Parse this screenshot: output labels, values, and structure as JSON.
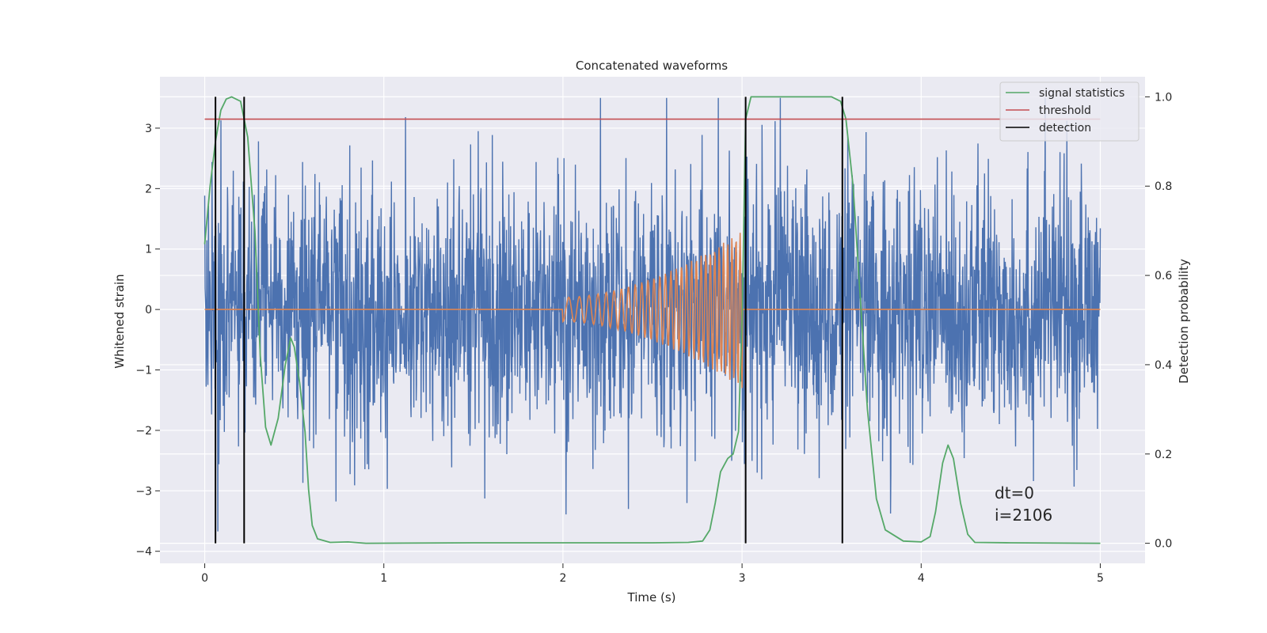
{
  "chart_data": {
    "type": "line",
    "title": "Concatenated waveforms",
    "xlabel": "Time (s)",
    "ylabel": "Whitened strain",
    "y2label": "Detection probability",
    "xlim": [
      -0.25,
      5.25
    ],
    "ylim": [
      -4.2,
      3.85
    ],
    "y2lim": [
      -0.045,
      1.045
    ],
    "xticks": [
      "0",
      "1",
      "2",
      "3",
      "4",
      "5"
    ],
    "yticks": [
      "3",
      "2",
      "1",
      "0",
      "−1",
      "−2",
      "−3",
      "−4"
    ],
    "y2ticks": [
      "1.0",
      "0.8",
      "0.6",
      "0.4",
      "0.2",
      "0.0"
    ],
    "grid": true,
    "legend_position": "top-right",
    "colors": {
      "strain": "#4c72b0",
      "template": "#dd8452",
      "signal_statistics": "#55a868",
      "threshold": "#c44e52",
      "detection": "#000000",
      "background": "#eaeaf2",
      "grid": "#ffffff"
    },
    "series": [
      {
        "name": "signal statistics",
        "axis": "right",
        "x": [
          0.0,
          0.03,
          0.06,
          0.09,
          0.12,
          0.15,
          0.2,
          0.24,
          0.28,
          0.31,
          0.34,
          0.37,
          0.41,
          0.45,
          0.48,
          0.5,
          0.53,
          0.56,
          0.58,
          0.6,
          0.63,
          0.7,
          0.8,
          0.9,
          1.5,
          2.5,
          2.7,
          2.78,
          2.82,
          2.85,
          2.88,
          2.92,
          2.95,
          2.98,
          3.0,
          3.02,
          3.05,
          3.1,
          3.3,
          3.5,
          3.55,
          3.58,
          3.62,
          3.66,
          3.7,
          3.75,
          3.8,
          3.9,
          4.0,
          4.05,
          4.08,
          4.12,
          4.15,
          4.18,
          4.22,
          4.26,
          4.3,
          4.5,
          5.0
        ],
        "values": [
          0.67,
          0.8,
          0.9,
          0.97,
          0.995,
          1.0,
          0.99,
          0.91,
          0.7,
          0.42,
          0.26,
          0.22,
          0.28,
          0.4,
          0.46,
          0.44,
          0.36,
          0.25,
          0.12,
          0.04,
          0.01,
          0.002,
          0.003,
          0.0,
          0.001,
          0.001,
          0.002,
          0.005,
          0.03,
          0.09,
          0.16,
          0.19,
          0.2,
          0.25,
          0.5,
          0.95,
          1.0,
          1.0,
          1.0,
          1.0,
          0.99,
          0.95,
          0.8,
          0.55,
          0.3,
          0.1,
          0.03,
          0.005,
          0.003,
          0.015,
          0.07,
          0.18,
          0.22,
          0.19,
          0.09,
          0.02,
          0.002,
          0.001,
          0.0
        ]
      },
      {
        "name": "threshold",
        "axis": "right",
        "x": [
          0.0,
          5.0
        ],
        "values": [
          0.95,
          0.95
        ]
      },
      {
        "name": "detection",
        "axis": "right",
        "x": [
          0.06,
          0.22,
          3.02,
          3.56
        ],
        "values": [
          1.0,
          1.0,
          1.0,
          1.0
        ]
      }
    ],
    "annotations": [
      "dt=0",
      "i=2106"
    ]
  }
}
